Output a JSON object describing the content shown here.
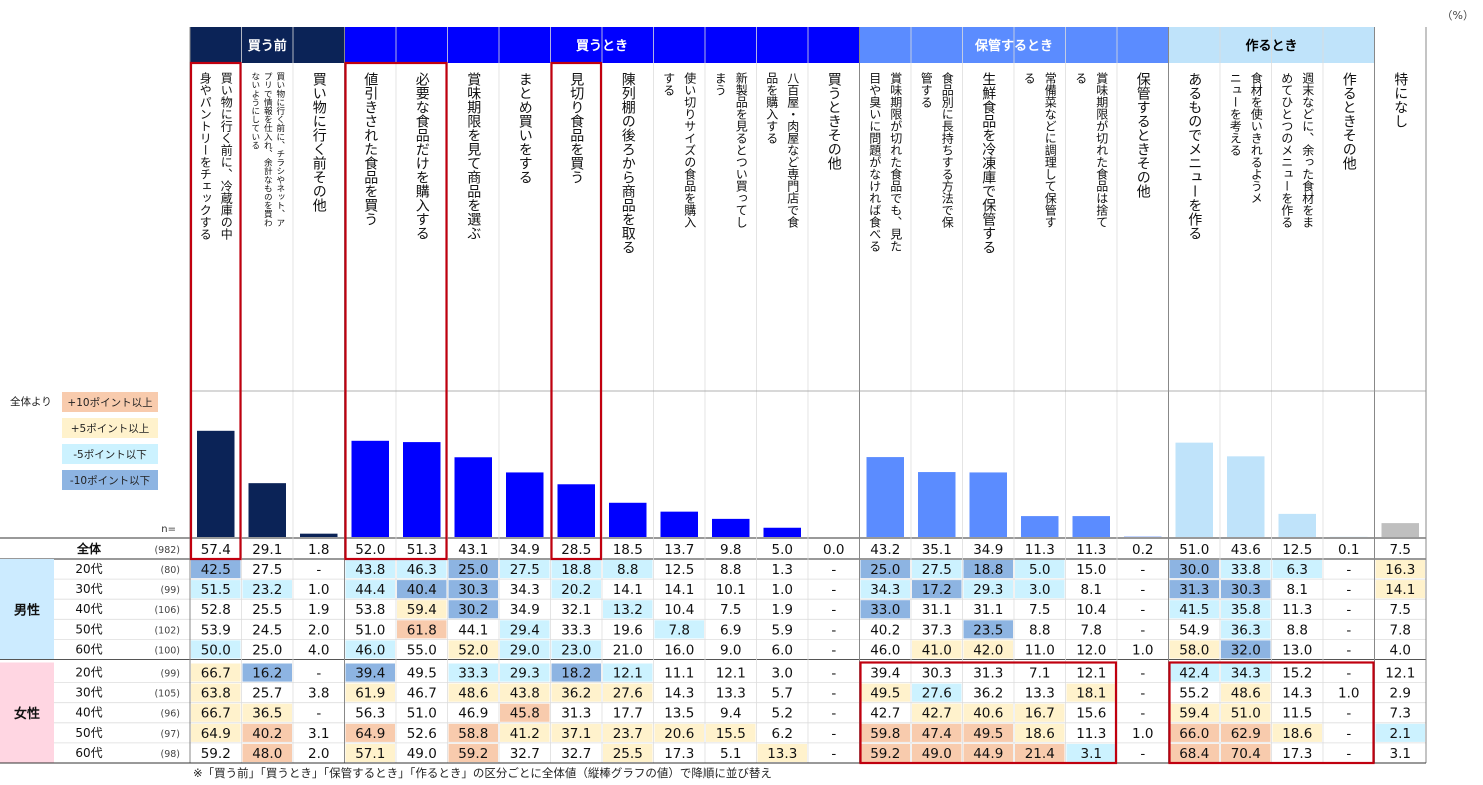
{
  "unit": "（%）",
  "footnote": "※「買う前」「買うとき」「保管するとき」「作るとき」の区分ごとに全体値（縦棒グラフの値）で降順に並び替え",
  "legend": {
    "title": "全体より",
    "items": [
      {
        "label": "+10ポイント以上",
        "color": "#F8CBAD"
      },
      {
        "label": "+5ポイント以上",
        "color": "#FFF2CC"
      },
      {
        "label": "-5ポイント以下",
        "color": "#CCF2FF"
      },
      {
        "label": "-10ポイント以下",
        "color": "#8DB4E2"
      }
    ]
  },
  "n_label": "n=",
  "colors": {
    "dark_navy": "#0B2357",
    "blue": "#0000FF",
    "mid_blue": "#5B8CFF",
    "light_blue": "#BFE3FA",
    "gray": "#BFBFBF",
    "highlight_red": "#C0000F"
  },
  "chart_data": {
    "type": "bar",
    "unit": "%",
    "groups": [
      {
        "label": "買う前",
        "span": [
          0,
          2
        ],
        "color": "#0B2357",
        "text_color": "#FFFFFF"
      },
      {
        "label": "買うとき",
        "span": [
          3,
          12
        ],
        "color": "#0000FF",
        "text_color": "#FFFFFF"
      },
      {
        "label": "保管するとき",
        "span": [
          13,
          18
        ],
        "color": "#5B8CFF",
        "text_color": "#FFFFFF"
      },
      {
        "label": "作るとき",
        "span": [
          19,
          22
        ],
        "color": "#BFE3FA",
        "text_color": "#000000"
      },
      {
        "label": "",
        "span": [
          23,
          23
        ],
        "color": "#FFFFFF",
        "text_color": "#000000"
      }
    ],
    "categories": [
      "買い物に行く前に、冷蔵庫の中身やパントリーをチェックする",
      "買い物に行く前に、チラシやネット、アプリで情報を仕入れ、余計なものを買わないようにしている",
      "買い物に行く前その他",
      "値引きされた食品を買う",
      "必要な食品だけを購入する",
      "賞味期限を見て商品を選ぶ",
      "まとめ買いをする",
      "見切り食品を買う",
      "陳列棚の後ろから商品を取る",
      "使い切りサイズの食品を購入する",
      "新製品を見るとつい買ってしまう",
      "八百屋・肉屋など専門店で食品を購入する",
      "買うときその他",
      "賞味期限が切れた食品でも、見た目や臭いに問題がなければ食べる",
      "食品別に長持ちする方法で保管する",
      "生鮮食品を冷凍庫で保管する",
      "常備菜などに調理して保管する",
      "賞味期限が切れた食品は捨てる",
      "保管するときその他",
      "あるものでメニューを作る",
      "食材を使いきれるようメニューを考える",
      "週末などに、余った食材をまとめてひとつのメニューを作る",
      "作るときその他",
      "特になし"
    ],
    "header_lines": [
      [
        "買い物に行く前に、冷蔵庫の中",
        "身やパントリーをチェックする"
      ],
      [
        "買い物に行く前に、チラシやネット、ア",
        "プリで情報を仕入れ、余計なものを買わ",
        "ないようにしている"
      ],
      [
        "買い物に行く前その他"
      ],
      [
        "値引きされた食品を買う"
      ],
      [
        "必要な食品だけを購入する"
      ],
      [
        "賞味期限を見て商品を選ぶ"
      ],
      [
        "まとめ買いをする"
      ],
      [
        "見切り食品を買う"
      ],
      [
        "陳列棚の後ろから商品を取る"
      ],
      [
        "使い切りサイズの食品を購入",
        "する"
      ],
      [
        "新製品を見るとつい買ってし",
        "まう"
      ],
      [
        "八百屋・肉屋など専門店で食",
        "品を購入する"
      ],
      [
        "買うときその他"
      ],
      [
        "賞味期限が切れた食品でも、見た",
        "目や臭いに問題がなければ食べる"
      ],
      [
        "食品別に長持ちする方法で保",
        "管する"
      ],
      [
        "生鮮食品を冷凍庫で保管する"
      ],
      [
        "常備菜などに調理して保管す",
        "る"
      ],
      [
        "賞味期限が切れた食品は捨て",
        "る"
      ],
      [
        "保管するときその他"
      ],
      [
        "あるものでメニューを作る"
      ],
      [
        "食材を使いきれるようメ",
        "ニューを考える"
      ],
      [
        "週末などに、余った食材をま",
        "めてひとつのメニューを作る"
      ],
      [
        "作るときその他"
      ],
      [
        "特になし"
      ]
    ],
    "values": [
      57.4,
      29.1,
      1.8,
      52.0,
      51.3,
      43.1,
      34.9,
      28.5,
      18.5,
      13.7,
      9.8,
      5.0,
      0.0,
      43.2,
      35.1,
      34.9,
      11.3,
      11.3,
      0.2,
      51.0,
      43.6,
      12.5,
      0.1,
      7.5
    ],
    "value_labels": [
      "57.4",
      "29.1",
      "1.8",
      "52.0",
      "51.3",
      "43.1",
      "34.9",
      "28.5",
      "18.5",
      "13.7",
      "9.8",
      "5.0",
      "0.0",
      "43.2",
      "35.1",
      "34.9",
      "11.3",
      "11.3",
      "0.2",
      "51.0",
      "43.6",
      "12.5",
      "0.1",
      "7.5"
    ],
    "ylim": [
      0,
      100
    ],
    "total": {
      "label": "全体",
      "n": "(982)"
    },
    "segments": [
      {
        "label": "男性",
        "rows": [
          {
            "age": "20代",
            "n": "(80)",
            "values": [
              "42.5",
              "27.5",
              "-",
              "43.8",
              "46.3",
              "25.0",
              "27.5",
              "18.8",
              "8.8",
              "12.5",
              "8.8",
              "1.3",
              "-",
              "25.0",
              "27.5",
              "18.8",
              "5.0",
              "15.0",
              "-",
              "30.0",
              "33.8",
              "6.3",
              "-",
              "16.3"
            ]
          },
          {
            "age": "30代",
            "n": "(99)",
            "values": [
              "51.5",
              "23.2",
              "1.0",
              "44.4",
              "40.4",
              "30.3",
              "34.3",
              "20.2",
              "14.1",
              "14.1",
              "10.1",
              "1.0",
              "-",
              "34.3",
              "17.2",
              "29.3",
              "3.0",
              "8.1",
              "-",
              "31.3",
              "30.3",
              "8.1",
              "-",
              "14.1"
            ]
          },
          {
            "age": "40代",
            "n": "(106)",
            "values": [
              "52.8",
              "25.5",
              "1.9",
              "53.8",
              "59.4",
              "30.2",
              "34.9",
              "32.1",
              "13.2",
              "10.4",
              "7.5",
              "1.9",
              "-",
              "33.0",
              "31.1",
              "31.1",
              "7.5",
              "10.4",
              "-",
              "41.5",
              "35.8",
              "11.3",
              "-",
              "7.5"
            ]
          },
          {
            "age": "50代",
            "n": "(102)",
            "values": [
              "53.9",
              "24.5",
              "2.0",
              "51.0",
              "61.8",
              "44.1",
              "29.4",
              "33.3",
              "19.6",
              "7.8",
              "6.9",
              "5.9",
              "-",
              "40.2",
              "37.3",
              "23.5",
              "8.8",
              "7.8",
              "-",
              "54.9",
              "36.3",
              "8.8",
              "-",
              "7.8"
            ]
          },
          {
            "age": "60代",
            "n": "(100)",
            "values": [
              "50.0",
              "25.0",
              "4.0",
              "46.0",
              "55.0",
              "52.0",
              "29.0",
              "23.0",
              "21.0",
              "16.0",
              "9.0",
              "6.0",
              "-",
              "46.0",
              "41.0",
              "42.0",
              "11.0",
              "12.0",
              "1.0",
              "58.0",
              "32.0",
              "13.0",
              "-",
              "4.0"
            ]
          }
        ]
      },
      {
        "label": "女性",
        "rows": [
          {
            "age": "20代",
            "n": "(99)",
            "values": [
              "66.7",
              "16.2",
              "-",
              "39.4",
              "49.5",
              "33.3",
              "29.3",
              "18.2",
              "12.1",
              "11.1",
              "12.1",
              "3.0",
              "-",
              "39.4",
              "30.3",
              "31.3",
              "7.1",
              "12.1",
              "-",
              "42.4",
              "34.3",
              "15.2",
              "-",
              "12.1"
            ]
          },
          {
            "age": "30代",
            "n": "(105)",
            "values": [
              "63.8",
              "25.7",
              "3.8",
              "61.9",
              "46.7",
              "48.6",
              "43.8",
              "36.2",
              "27.6",
              "14.3",
              "13.3",
              "5.7",
              "-",
              "49.5",
              "27.6",
              "36.2",
              "13.3",
              "18.1",
              "-",
              "55.2",
              "48.6",
              "14.3",
              "1.0",
              "2.9"
            ]
          },
          {
            "age": "40代",
            "n": "(96)",
            "values": [
              "66.7",
              "36.5",
              "-",
              "56.3",
              "51.0",
              "46.9",
              "45.8",
              "31.3",
              "17.7",
              "13.5",
              "9.4",
              "5.2",
              "-",
              "42.7",
              "42.7",
              "40.6",
              "16.7",
              "15.6",
              "-",
              "59.4",
              "51.0",
              "11.5",
              "-",
              "7.3"
            ]
          },
          {
            "age": "50代",
            "n": "(97)",
            "values": [
              "64.9",
              "40.2",
              "3.1",
              "64.9",
              "52.6",
              "58.8",
              "41.2",
              "37.1",
              "23.7",
              "20.6",
              "15.5",
              "6.2",
              "-",
              "59.8",
              "47.4",
              "49.5",
              "18.6",
              "11.3",
              "1.0",
              "66.0",
              "62.9",
              "18.6",
              "-",
              "2.1"
            ]
          },
          {
            "age": "60代",
            "n": "(98)",
            "values": [
              "59.2",
              "48.0",
              "2.0",
              "57.1",
              "49.0",
              "59.2",
              "32.7",
              "32.7",
              "25.5",
              "17.3",
              "5.1",
              "13.3",
              "-",
              "59.2",
              "49.0",
              "44.9",
              "21.4",
              "3.1",
              "-",
              "68.4",
              "70.4",
              "17.3",
              "-",
              "3.1"
            ]
          }
        ]
      }
    ],
    "highlight_columns": [
      [
        0,
        0
      ],
      [
        3,
        4
      ],
      [
        7,
        7
      ]
    ],
    "highlight_blocks": [
      {
        "segment": 1,
        "columns": [
          13,
          17
        ]
      },
      {
        "segment": 1,
        "columns": [
          19,
          22
        ]
      }
    ]
  }
}
